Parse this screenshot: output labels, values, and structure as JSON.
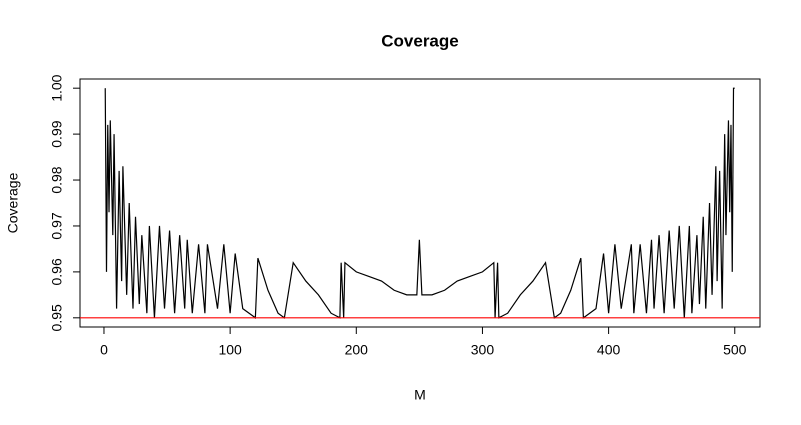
{
  "chart_data": {
    "type": "line",
    "title": "Coverage",
    "x_label": "M",
    "y_label": "Coverage",
    "x": [
      1,
      2,
      3,
      4,
      5,
      7,
      8,
      10,
      12,
      14,
      15,
      18,
      20,
      23,
      25,
      28,
      30,
      34,
      36,
      40,
      44,
      48,
      52,
      56,
      60,
      64,
      66,
      70,
      75,
      80,
      82,
      90,
      95,
      100,
      104,
      110,
      120,
      122,
      130,
      138,
      143,
      150,
      160,
      170,
      180,
      187,
      188,
      190,
      191,
      200,
      210,
      220,
      230,
      240,
      248,
      250,
      252,
      260,
      270,
      280,
      290,
      300,
      309,
      310,
      312,
      313,
      320,
      330,
      340,
      350,
      357,
      362,
      370,
      378,
      380,
      390,
      396,
      400,
      405,
      410,
      418,
      420,
      425,
      430,
      434,
      436,
      440,
      444,
      448,
      452,
      456,
      460,
      464,
      466,
      470,
      472,
      475,
      477,
      480,
      482,
      485,
      486,
      488,
      490,
      492,
      493,
      495,
      496,
      497,
      498,
      499,
      500
    ],
    "series": [
      {
        "name": "Coverage",
        "color": "#000000",
        "values": [
          1.0,
          0.96,
          0.992,
          0.973,
          0.993,
          0.968,
          0.99,
          0.952,
          0.982,
          0.958,
          0.983,
          0.955,
          0.975,
          0.952,
          0.972,
          0.953,
          0.968,
          0.951,
          0.97,
          0.95,
          0.97,
          0.952,
          0.969,
          0.951,
          0.968,
          0.952,
          0.967,
          0.951,
          0.966,
          0.951,
          0.966,
          0.952,
          0.966,
          0.951,
          0.964,
          0.952,
          0.95,
          0.963,
          0.956,
          0.951,
          0.95,
          0.962,
          0.958,
          0.955,
          0.951,
          0.95,
          0.962,
          0.95,
          0.962,
          0.96,
          0.959,
          0.958,
          0.956,
          0.955,
          0.955,
          0.967,
          0.955,
          0.955,
          0.956,
          0.958,
          0.959,
          0.96,
          0.962,
          0.95,
          0.962,
          0.95,
          0.951,
          0.955,
          0.958,
          0.962,
          0.95,
          0.951,
          0.956,
          0.963,
          0.95,
          0.952,
          0.964,
          0.951,
          0.966,
          0.952,
          0.966,
          0.951,
          0.966,
          0.951,
          0.967,
          0.952,
          0.968,
          0.951,
          0.969,
          0.952,
          0.97,
          0.95,
          0.97,
          0.951,
          0.968,
          0.953,
          0.972,
          0.952,
          0.975,
          0.955,
          0.983,
          0.958,
          0.982,
          0.952,
          0.99,
          0.968,
          0.993,
          0.973,
          0.992,
          0.96,
          1.0,
          1.0
        ]
      }
    ],
    "hline": {
      "value": 0.95,
      "color": "#ff0000"
    },
    "xlim": [
      -19,
      520
    ],
    "xticks": [
      0,
      100,
      200,
      300,
      400,
      500
    ],
    "ylim": [
      0.948,
      1.002
    ],
    "yticks": [
      0.95,
      0.96,
      0.97,
      0.98,
      0.99,
      {
        "value": 1,
        "label": "1.00"
      }
    ]
  }
}
